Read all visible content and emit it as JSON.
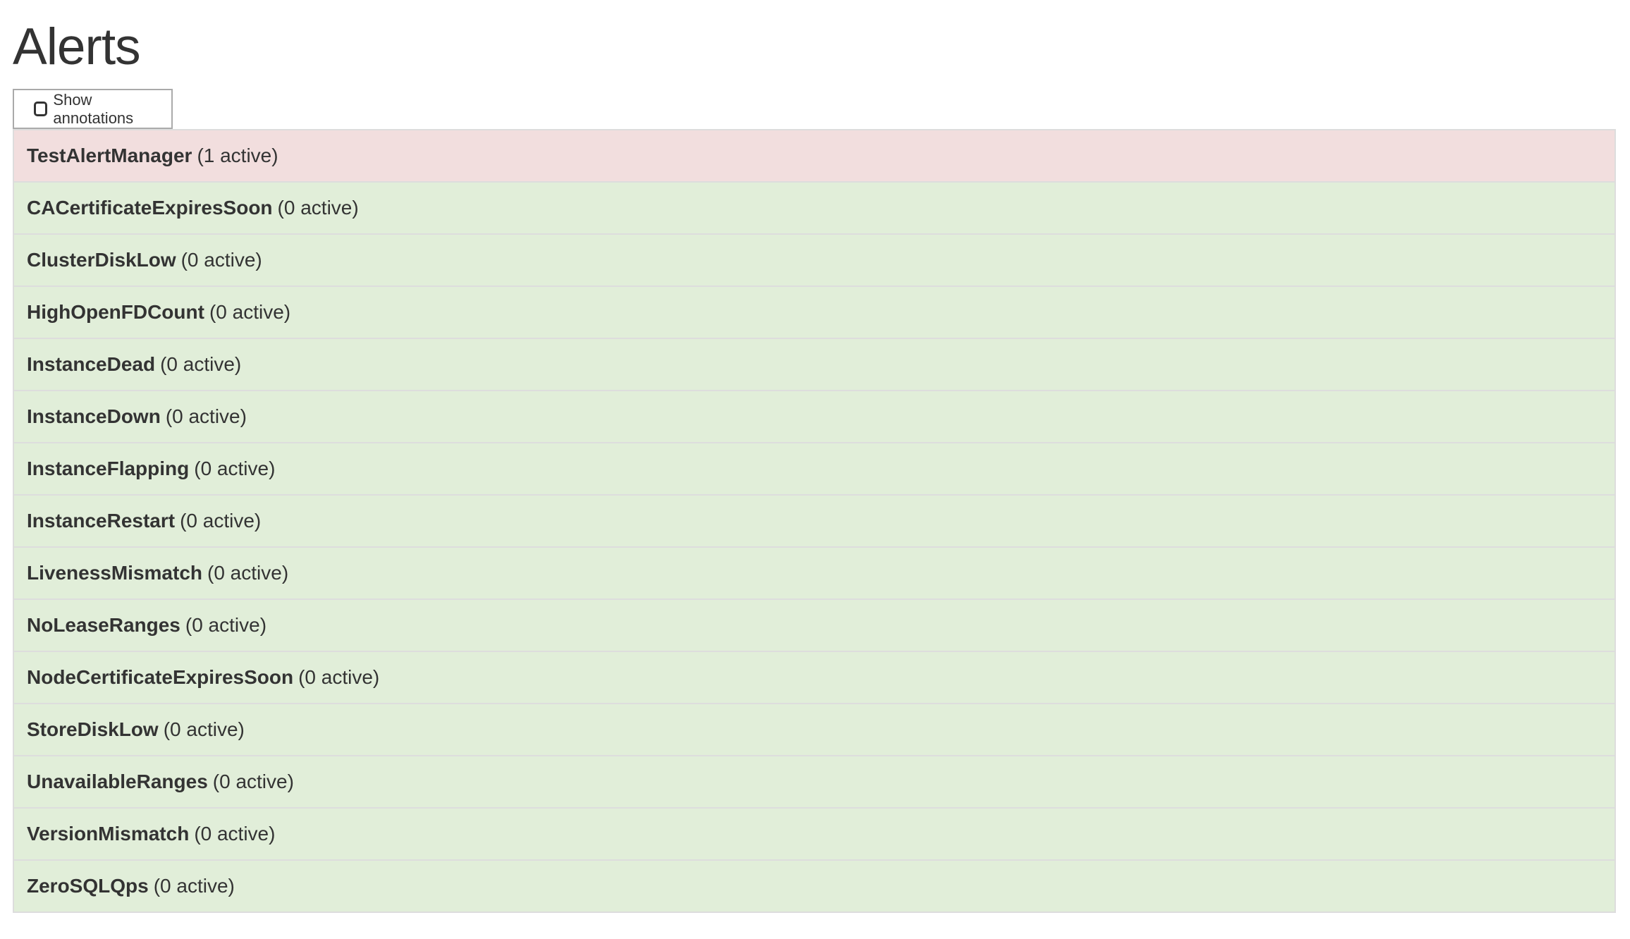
{
  "page": {
    "title": "Alerts"
  },
  "toolbar": {
    "show_annotations_label": "Show annotations",
    "show_annotations_checked": false
  },
  "colors": {
    "firing": "#f2dede",
    "inactive": "#dff0d8",
    "border": "#dddddd",
    "text": "#333333"
  },
  "alerts": [
    {
      "name": "TestAlertManager",
      "count": "(1 active)",
      "state": "firing"
    },
    {
      "name": "CACertificateExpiresSoon",
      "count": "(0 active)",
      "state": "inactive"
    },
    {
      "name": "ClusterDiskLow",
      "count": "(0 active)",
      "state": "inactive"
    },
    {
      "name": "HighOpenFDCount",
      "count": "(0 active)",
      "state": "inactive"
    },
    {
      "name": "InstanceDead",
      "count": "(0 active)",
      "state": "inactive"
    },
    {
      "name": "InstanceDown",
      "count": "(0 active)",
      "state": "inactive"
    },
    {
      "name": "InstanceFlapping",
      "count": "(0 active)",
      "state": "inactive"
    },
    {
      "name": "InstanceRestart",
      "count": "(0 active)",
      "state": "inactive"
    },
    {
      "name": "LivenessMismatch",
      "count": "(0 active)",
      "state": "inactive"
    },
    {
      "name": "NoLeaseRanges",
      "count": "(0 active)",
      "state": "inactive"
    },
    {
      "name": "NodeCertificateExpiresSoon",
      "count": "(0 active)",
      "state": "inactive"
    },
    {
      "name": "StoreDiskLow",
      "count": "(0 active)",
      "state": "inactive"
    },
    {
      "name": "UnavailableRanges",
      "count": "(0 active)",
      "state": "inactive"
    },
    {
      "name": "VersionMismatch",
      "count": "(0 active)",
      "state": "inactive"
    },
    {
      "name": "ZeroSQLQps",
      "count": "(0 active)",
      "state": "inactive"
    }
  ]
}
